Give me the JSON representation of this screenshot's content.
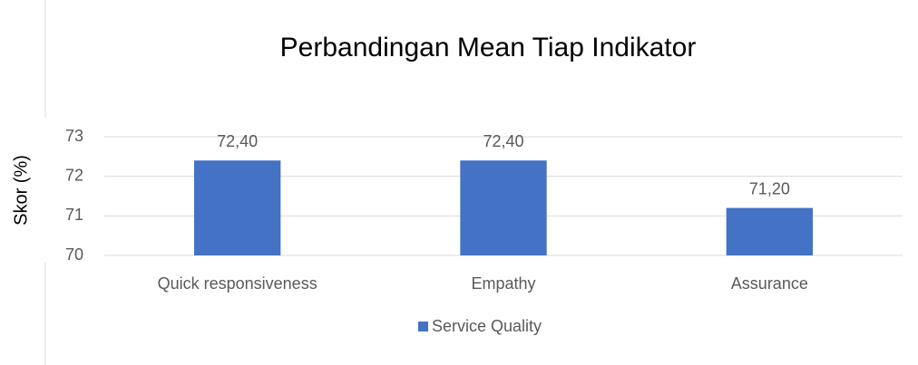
{
  "chart_data": {
    "type": "bar",
    "title": "Perbandingan Mean Tiap Indikator",
    "y_label": "Skor (%)",
    "categories": [
      "Quick responsiveness",
      "Empathy",
      "Assurance"
    ],
    "series": [
      {
        "name": "Service Quality",
        "color": "#4472c4",
        "values": [
          72.4,
          72.4,
          71.2
        ],
        "value_labels": [
          "72,40",
          "72,40",
          "71,20"
        ]
      }
    ],
    "ylim": [
      70,
      73
    ],
    "yticks": [
      70,
      71,
      72,
      73
    ],
    "grid": true,
    "legend": "bottom"
  }
}
